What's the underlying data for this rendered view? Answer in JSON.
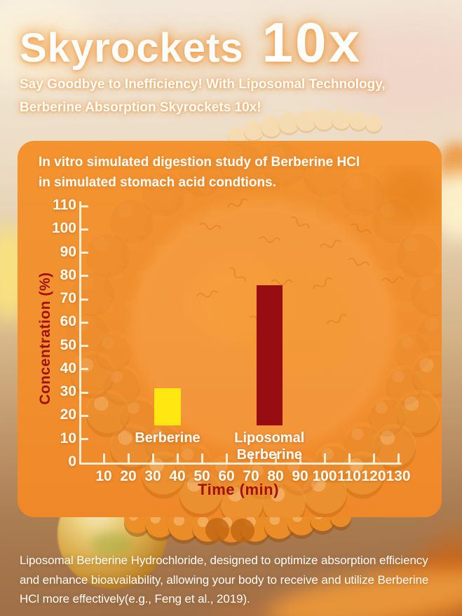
{
  "header": {
    "title_main": "Skyrockets",
    "title_multiplier": "10x",
    "subtitle_line1": "Say Goodbye to Inefficiency! With Liposomal Technology,",
    "subtitle_line2": "Berberine Absorption Skyrockets 10x!"
  },
  "chart_card": {
    "title_line1": "In vitro simulated digestion study of Berberine HCl",
    "title_line2": "in simulated stomach acid condtions."
  },
  "chart_data": {
    "type": "bar",
    "title": "In vitro simulated digestion study of Berberine HCl in simulated stomach acid condtions.",
    "xlabel": "Time (min)",
    "ylabel": "Concentration (%)",
    "categories": [
      "Berberine",
      "Liposomal Berberine"
    ],
    "category_label_lines": [
      [
        "Berberine"
      ],
      [
        "Liposomal",
        "Berberine"
      ]
    ],
    "values": [
      32,
      76
    ],
    "bar_colors": [
      "#FFE712",
      "#970D11"
    ],
    "bar_centers_x": [
      36,
      77.5
    ],
    "bar_width_x": 10.6,
    "bar_base_value": 16,
    "x_ticks": [
      10,
      20,
      30,
      40,
      50,
      60,
      70,
      80,
      90,
      100,
      110,
      120,
      130
    ],
    "y_ticks": [
      0,
      10,
      20,
      30,
      40,
      50,
      60,
      70,
      80,
      90,
      100,
      110
    ],
    "xlim": [
      0,
      131
    ],
    "ylim": [
      0,
      112
    ],
    "grid": false,
    "legend": "none"
  },
  "footer": {
    "line1": "Liposomal Berberine Hydrochloride, designed to optimize absorption efficiency",
    "line2": "and enhance bioavailability, allowing your body to receive and utilize Berberine",
    "line3": "HCl more effectively(e.g., Feng et al., 2019)."
  },
  "colors": {
    "card_orange": "#F2902F",
    "bar_yellow": "#FFE712",
    "bar_dark_red": "#970D11",
    "axis_line_cream": "#FCEED6",
    "axis_title_red": "#A01206",
    "text_white": "#FFFFFF"
  }
}
